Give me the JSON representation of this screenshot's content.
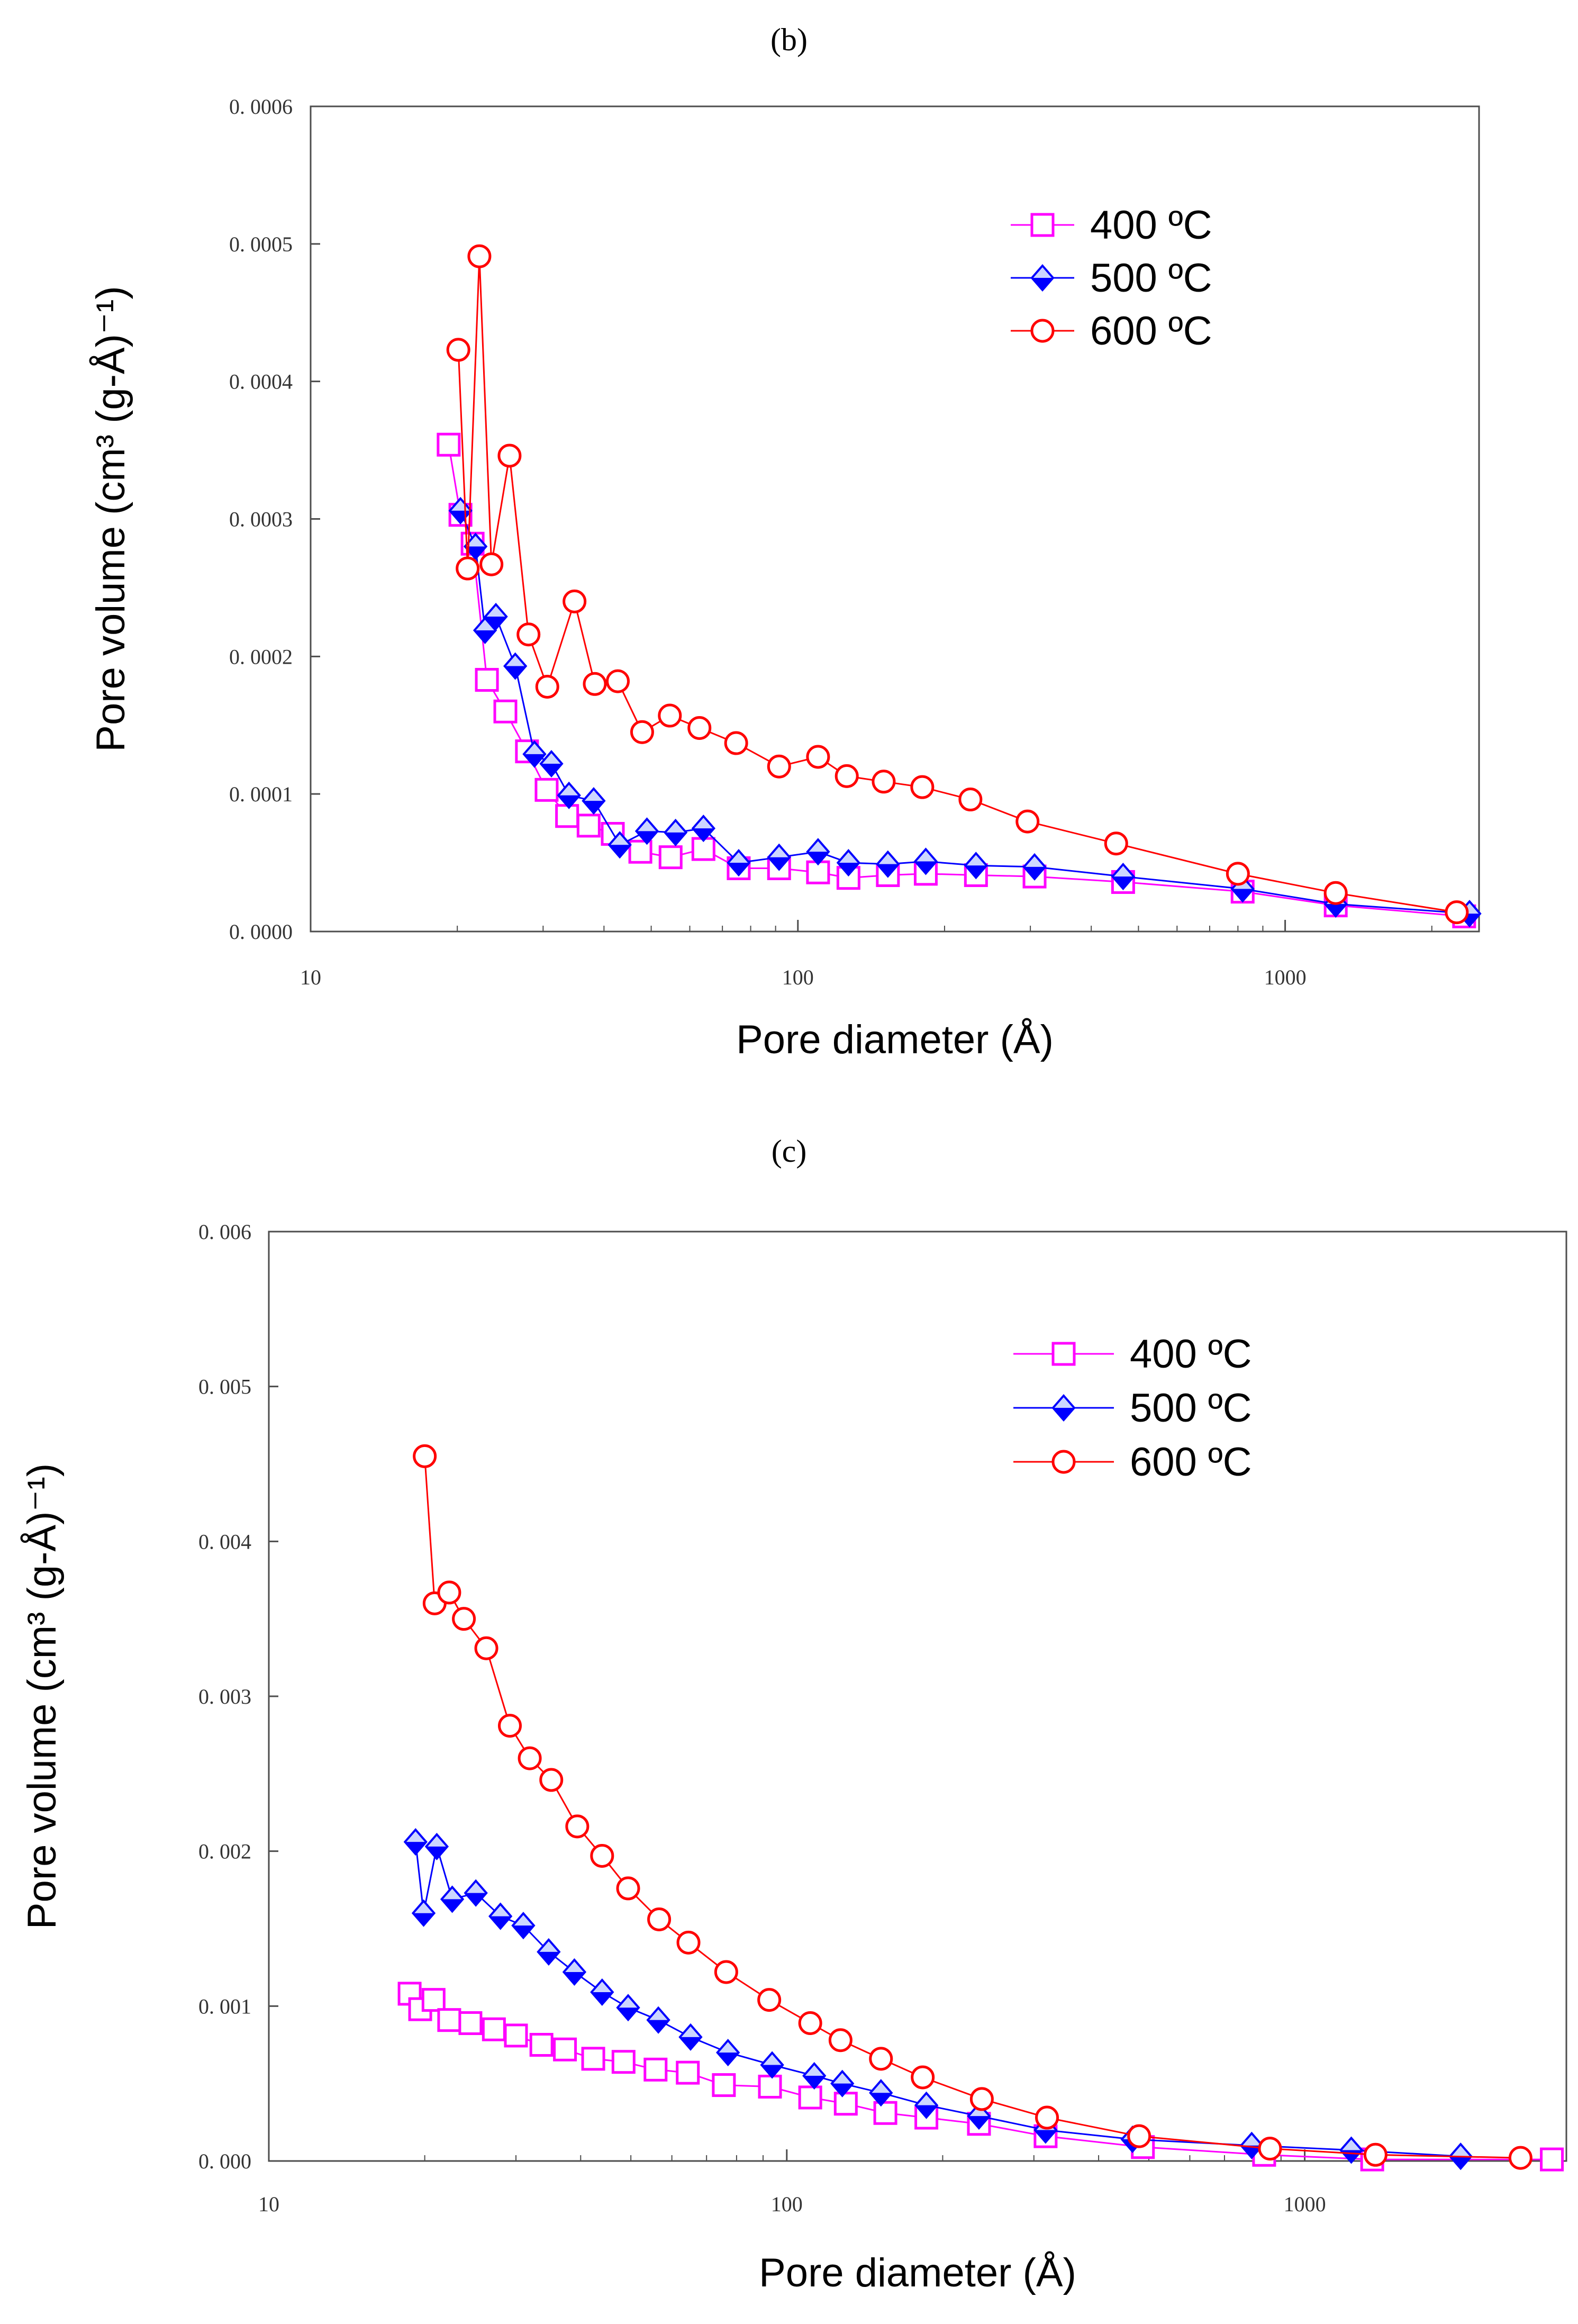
{
  "chart_data": [
    {
      "type": "line",
      "panel": "(b)",
      "xlabel": "Pore diameter (Å)",
      "ylabel": "Pore volume (cm³ (g-Å)⁻¹)",
      "xscale": "log",
      "xlim": [
        10,
        2500
      ],
      "ylim": [
        0,
        0.0006
      ],
      "xticks": [
        {
          "value": 10,
          "label": "10"
        },
        {
          "value": 100,
          "label": "100"
        },
        {
          "value": 1000,
          "label": "1000"
        }
      ],
      "yticks": [
        {
          "value": 0,
          "label": "0. 0000"
        },
        {
          "value": 0.0001,
          "label": "0. 0001"
        },
        {
          "value": 0.0002,
          "label": "0. 0002"
        },
        {
          "value": 0.0003,
          "label": "0. 0003"
        },
        {
          "value": 0.0004,
          "label": "0. 0004"
        },
        {
          "value": 0.0005,
          "label": "0. 0005"
        },
        {
          "value": 0.0006,
          "label": "0. 0006"
        }
      ],
      "legend_position": "top-right",
      "series": [
        {
          "name": "400 °C",
          "legend_label": "400 ºC",
          "color": "#ff00ff",
          "marker": "square",
          "fill": "none",
          "x": [
            19.2,
            20.3,
            21.5,
            23.0,
            25.1,
            27.8,
            30.5,
            33.6,
            37.2,
            41.7,
            47.5,
            54.8,
            64.0,
            75.6,
            91.5,
            110,
            127,
            153,
            183,
            232,
            306,
            465,
            818,
            1270,
            2330
          ],
          "y": [
            0.000354,
            0.000303,
            0.000282,
            0.000183,
            0.00016,
            0.000131,
            0.000103,
            8.4e-05,
            7.7e-05,
            7.1e-05,
            5.8e-05,
            5.4e-05,
            6e-05,
            4.6e-05,
            4.6e-05,
            4.3e-05,
            3.9e-05,
            4.1e-05,
            4.2e-05,
            4.1e-05,
            4e-05,
            3.6e-05,
            2.9e-05,
            1.9e-05,
            1.1e-05
          ]
        },
        {
          "name": "500 °C",
          "legend_label": "500 ºC",
          "color": "#0000ff",
          "marker": "diamond",
          "fill": "half",
          "x": [
            20.3,
            21.8,
            22.8,
            24.0,
            26.3,
            28.8,
            31.2,
            33.9,
            38.1,
            43.1,
            49.0,
            56.1,
            64.0,
            75.6,
            91.5,
            110,
            127,
            153,
            183,
            232,
            306,
            465,
            818,
            1270,
            2390
          ],
          "y": [
            0.000306,
            0.00028,
            0.000219,
            0.000229,
            0.000193,
            0.000129,
            0.000122,
            9.9e-05,
            9.5e-05,
            6.3e-05,
            7.3e-05,
            7.2e-05,
            7.5e-05,
            5e-05,
            5.4e-05,
            5.8e-05,
            5e-05,
            4.9e-05,
            5.1e-05,
            4.8e-05,
            4.7e-05,
            4e-05,
            3.1e-05,
            2e-05,
            1.3e-05
          ]
        },
        {
          "name": "600 °C",
          "legend_label": "600 ºC",
          "color": "#ff0000",
          "marker": "circle",
          "fill": "none",
          "x": [
            20.1,
            21.0,
            22.2,
            23.5,
            25.6,
            28.0,
            30.6,
            34.8,
            38.3,
            42.7,
            47.9,
            54.6,
            62.8,
            74.7,
            91.5,
            110,
            126,
            150,
            180,
            226,
            296,
            450,
            800,
            1270,
            2250
          ],
          "y": [
            0.000423,
            0.000264,
            0.000491,
            0.000267,
            0.000346,
            0.000216,
            0.000178,
            0.00024,
            0.00018,
            0.000182,
            0.000145,
            0.000157,
            0.000148,
            0.000137,
            0.00012,
            0.000127,
            0.000113,
            0.000109,
            0.000105,
            9.6e-05,
            8e-05,
            6.4e-05,
            4.2e-05,
            2.8e-05,
            1.4e-05
          ]
        }
      ]
    },
    {
      "type": "line",
      "panel": "(c)",
      "xlabel": "Pore diameter (Å)",
      "ylabel": "Pore volume (cm³ (g-Å)⁻¹)",
      "xscale": "log",
      "xlim": [
        10,
        3200
      ],
      "ylim": [
        0,
        0.006
      ],
      "xticks": [
        {
          "value": 10,
          "label": "10"
        },
        {
          "value": 100,
          "label": "100"
        },
        {
          "value": 1000,
          "label": "1000"
        }
      ],
      "yticks": [
        {
          "value": 0,
          "label": "0. 000"
        },
        {
          "value": 0.001,
          "label": "0. 001"
        },
        {
          "value": 0.002,
          "label": "0. 002"
        },
        {
          "value": 0.003,
          "label": "0. 003"
        },
        {
          "value": 0.004,
          "label": "0. 004"
        },
        {
          "value": 0.005,
          "label": "0. 005"
        },
        {
          "value": 0.006,
          "label": "0. 006"
        }
      ],
      "legend_position": "top-right",
      "series": [
        {
          "name": "400 °C",
          "legend_label": "400 ºC",
          "color": "#ff00ff",
          "marker": "square",
          "fill": "none",
          "x": [
            18.7,
            19.6,
            20.8,
            22.3,
            24.5,
            27.2,
            30.0,
            33.6,
            37.3,
            42.3,
            48.4,
            55.8,
            64.4,
            75.6,
            92.8,
            111,
            130,
            155,
            186,
            235,
            316,
            487,
            835,
            1350,
            3000
          ],
          "y": [
            0.00108,
            0.00098,
            0.00104,
            0.00091,
            0.00089,
            0.00085,
            0.00081,
            0.00075,
            0.00072,
            0.00066,
            0.00064,
            0.00059,
            0.00057,
            0.00049,
            0.00048,
            0.00041,
            0.00037,
            0.00031,
            0.00028,
            0.00024,
            0.00016,
            9e-05,
            4e-05,
            1e-05,
            1e-05
          ]
        },
        {
          "name": "500 °C",
          "legend_label": "500 ºC",
          "color": "#0000ff",
          "marker": "diamond",
          "fill": "half",
          "x": [
            19.2,
            19.9,
            21.1,
            22.6,
            25.1,
            28.0,
            31.0,
            34.7,
            38.9,
            44.0,
            49.4,
            56.5,
            65.2,
            77.0,
            93.7,
            113,
            128,
            152,
            186,
            235,
            316,
            465,
            790,
            1230,
            2000
          ],
          "y": [
            0.00206,
            0.0016,
            0.00203,
            0.00169,
            0.00173,
            0.00158,
            0.00152,
            0.00135,
            0.00122,
            0.00109,
            0.00099,
            0.00091,
            0.0008,
            0.0007,
            0.00062,
            0.00055,
            0.0005,
            0.00044,
            0.00036,
            0.00029,
            0.0002,
            0.00014,
            0.0001,
            7e-05,
            3e-05
          ]
        },
        {
          "name": "600 °C",
          "legend_label": "600 ºC",
          "color": "#ff0000",
          "marker": "circle",
          "fill": "none",
          "x": [
            20.0,
            20.9,
            22.3,
            23.8,
            26.3,
            29.2,
            31.9,
            35.1,
            39.4,
            44.0,
            49.4,
            56.7,
            64.6,
            76.4,
            92.5,
            111,
            127,
            152,
            183,
            238,
            318,
            479,
            857,
            1370,
            2610
          ],
          "y": [
            0.00455,
            0.0036,
            0.00367,
            0.0035,
            0.00331,
            0.00281,
            0.0026,
            0.00246,
            0.00216,
            0.00197,
            0.00176,
            0.00156,
            0.00141,
            0.00122,
            0.00104,
            0.00089,
            0.00078,
            0.00066,
            0.00054,
            0.0004,
            0.00028,
            0.00016,
            8e-05,
            4e-05,
            2e-05
          ]
        }
      ]
    }
  ]
}
